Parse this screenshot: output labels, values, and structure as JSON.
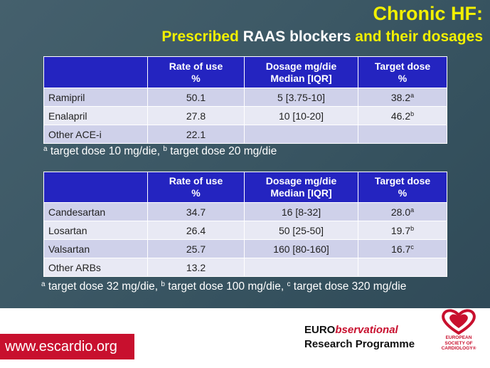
{
  "title": {
    "line1": "Chronic HF:",
    "line2_a": "Prescribed ",
    "line2_b": "RAAS blockers",
    "line2_c": " and their dosages"
  },
  "ace_table": {
    "headers": [
      "",
      "Rate of use\n%",
      "Dosage mg/die\nMedian [IQR]",
      "Target dose\n%"
    ],
    "rows": [
      {
        "drug": "Ramipril",
        "rate": "50.1",
        "dosage": "5 [3.75-10]",
        "target": "38.2",
        "sup": "a"
      },
      {
        "drug": "Enalapril",
        "rate": "27.8",
        "dosage": "10 [10-20]",
        "target": "46.2",
        "sup": "b"
      },
      {
        "drug": "Other ACE-i",
        "rate": "22.1",
        "dosage": "",
        "target": "",
        "sup": ""
      }
    ],
    "footnote": {
      "a_mark": "a",
      "a_text": " target dose 10 mg/die, ",
      "b_mark": "b",
      "b_text": " target dose 20 mg/die"
    }
  },
  "arb_table": {
    "headers": [
      "",
      "Rate of use\n%",
      "Dosage mg/die\nMedian [IQR]",
      "Target dose\n%"
    ],
    "rows": [
      {
        "drug": "Candesartan",
        "rate": "34.7",
        "dosage": "16 [8-32]",
        "target": "28.0",
        "sup": "a"
      },
      {
        "drug": "Losartan",
        "rate": "26.4",
        "dosage": "50 [25-50]",
        "target": "19.7",
        "sup": "b"
      },
      {
        "drug": "Valsartan",
        "rate": "25.7",
        "dosage": "160 [80-160]",
        "target": "16.7",
        "sup": "c"
      },
      {
        "drug": "Other ARBs",
        "rate": "13.2",
        "dosage": "",
        "target": "",
        "sup": ""
      }
    ],
    "footnote": {
      "a_mark": "a",
      "a_text": " target dose 32 mg/die, ",
      "b_mark": "b",
      "b_text": " target dose 100 mg/die, ",
      "c_mark": "c",
      "c_text": " target dose 320 mg/die"
    }
  },
  "footer": {
    "website": "www.escardio.org",
    "program_line1_a": "EURO",
    "program_line1_b": "bservational",
    "program_line2": "Research Programme",
    "esc_line1": "EUROPEAN",
    "esc_line2": "SOCIETY OF",
    "esc_line3": "CARDIOLOGY®"
  },
  "colors": {
    "header_blue": "#2424c0",
    "title_yellow": "#f2f000",
    "esc_red": "#c8102e",
    "row_odd": "#cfd1ea",
    "row_even": "#e8e9f4"
  }
}
